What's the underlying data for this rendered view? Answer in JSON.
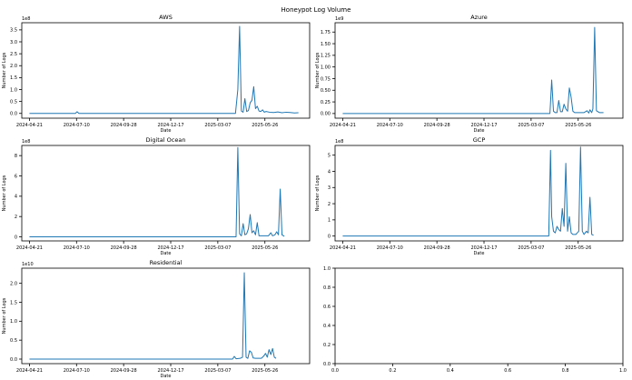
{
  "figure": {
    "title": "Honeypot Log Volume"
  },
  "chart_data": [
    {
      "type": "line",
      "title": "AWS",
      "xlabel": "Date",
      "ylabel": "Number of Logs",
      "y_offset_text": "1e8",
      "xlim": [
        "2024-04-08",
        "2025-08-10"
      ],
      "ylim": [
        -0.2,
        3.8
      ],
      "x_ticks": [
        "2024-04-21",
        "2024-07-10",
        "2024-09-28",
        "2024-12-17",
        "2025-03-07",
        "2025-05-26"
      ],
      "y_ticks": [
        0.0,
        0.5,
        1.0,
        1.5,
        2.0,
        2.5,
        3.0,
        3.5
      ],
      "grid": false,
      "series": [
        {
          "color": "#1f77b4",
          "points": [
            [
              "2024-04-21",
              0.0
            ],
            [
              "2024-07-08",
              0.0
            ],
            [
              "2024-07-11",
              0.07
            ],
            [
              "2024-07-14",
              0.0
            ],
            [
              "2025-04-06",
              0.0
            ],
            [
              "2025-04-10",
              1.0
            ],
            [
              "2025-04-13",
              3.65
            ],
            [
              "2025-04-16",
              0.1
            ],
            [
              "2025-04-19",
              0.05
            ],
            [
              "2025-04-22",
              0.62
            ],
            [
              "2025-04-25",
              0.08
            ],
            [
              "2025-04-28",
              0.12
            ],
            [
              "2025-05-01",
              0.45
            ],
            [
              "2025-05-04",
              0.55
            ],
            [
              "2025-05-07",
              1.12
            ],
            [
              "2025-05-10",
              0.2
            ],
            [
              "2025-05-13",
              0.3
            ],
            [
              "2025-05-16",
              0.1
            ],
            [
              "2025-05-19",
              0.08
            ],
            [
              "2025-05-22",
              0.15
            ],
            [
              "2025-05-25",
              0.05
            ],
            [
              "2025-05-28",
              0.08
            ],
            [
              "2025-06-03",
              0.05
            ],
            [
              "2025-06-10",
              0.04
            ],
            [
              "2025-06-17",
              0.06
            ],
            [
              "2025-06-24",
              0.03
            ],
            [
              "2025-07-01",
              0.05
            ],
            [
              "2025-07-08",
              0.04
            ],
            [
              "2025-07-15",
              0.02
            ],
            [
              "2025-07-22",
              0.03
            ]
          ]
        }
      ]
    },
    {
      "type": "line",
      "title": "Azure",
      "xlabel": "Date",
      "ylabel": "Number of Logs",
      "y_offset_text": "1e9",
      "xlim": [
        "2024-04-08",
        "2025-08-10"
      ],
      "ylim": [
        -0.1,
        1.95
      ],
      "x_ticks": [
        "2024-04-21",
        "2024-07-10",
        "2024-09-28",
        "2024-12-17",
        "2025-03-07",
        "2025-05-26"
      ],
      "y_ticks": [
        0.0,
        0.25,
        0.5,
        0.75,
        1.0,
        1.25,
        1.5,
        1.75
      ],
      "grid": false,
      "series": [
        {
          "color": "#1f77b4",
          "points": [
            [
              "2024-04-21",
              0.0
            ],
            [
              "2025-04-08",
              0.0
            ],
            [
              "2025-04-11",
              0.72
            ],
            [
              "2025-04-14",
              0.05
            ],
            [
              "2025-04-17",
              0.02
            ],
            [
              "2025-04-20",
              0.02
            ],
            [
              "2025-04-23",
              0.28
            ],
            [
              "2025-04-26",
              0.04
            ],
            [
              "2025-04-29",
              0.04
            ],
            [
              "2025-05-02",
              0.2
            ],
            [
              "2025-05-05",
              0.1
            ],
            [
              "2025-05-08",
              0.05
            ],
            [
              "2025-05-11",
              0.55
            ],
            [
              "2025-05-14",
              0.35
            ],
            [
              "2025-05-17",
              0.05
            ],
            [
              "2025-05-20",
              0.02
            ],
            [
              "2025-06-05",
              0.02
            ],
            [
              "2025-06-10",
              0.06
            ],
            [
              "2025-06-13",
              0.01
            ],
            [
              "2025-06-15",
              0.08
            ],
            [
              "2025-06-18",
              0.02
            ],
            [
              "2025-06-20",
              0.1
            ],
            [
              "2025-06-23",
              1.85
            ],
            [
              "2025-06-26",
              0.06
            ],
            [
              "2025-07-01",
              0.02
            ],
            [
              "2025-07-08",
              0.02
            ]
          ]
        }
      ]
    },
    {
      "type": "line",
      "title": "Digital Ocean",
      "xlabel": "Date",
      "ylabel": "Number of Logs",
      "y_offset_text": "1e8",
      "xlim": [
        "2024-04-08",
        "2025-08-10"
      ],
      "ylim": [
        -0.4,
        9.0
      ],
      "x_ticks": [
        "2024-04-21",
        "2024-07-10",
        "2024-09-28",
        "2024-12-17",
        "2025-03-07",
        "2025-05-26"
      ],
      "y_ticks": [
        0,
        2,
        4,
        6,
        8
      ],
      "grid": false,
      "series": [
        {
          "color": "#1f77b4",
          "points": [
            [
              "2024-04-21",
              0.0
            ],
            [
              "2025-04-07",
              0.0
            ],
            [
              "2025-04-10",
              8.8
            ],
            [
              "2025-04-13",
              0.3
            ],
            [
              "2025-04-16",
              0.1
            ],
            [
              "2025-04-19",
              1.3
            ],
            [
              "2025-04-22",
              0.2
            ],
            [
              "2025-04-25",
              0.3
            ],
            [
              "2025-04-28",
              0.8
            ],
            [
              "2025-05-01",
              2.2
            ],
            [
              "2025-05-04",
              0.4
            ],
            [
              "2025-05-07",
              0.6
            ],
            [
              "2025-05-10",
              0.2
            ],
            [
              "2025-05-13",
              1.4
            ],
            [
              "2025-05-16",
              0.1
            ],
            [
              "2025-05-19",
              0.1
            ],
            [
              "2025-06-01",
              0.1
            ],
            [
              "2025-06-05",
              0.4
            ],
            [
              "2025-06-08",
              0.1
            ],
            [
              "2025-06-12",
              0.2
            ],
            [
              "2025-06-15",
              0.5
            ],
            [
              "2025-06-18",
              0.2
            ],
            [
              "2025-06-21",
              4.7
            ],
            [
              "2025-06-24",
              0.2
            ],
            [
              "2025-06-28",
              0.05
            ]
          ]
        }
      ]
    },
    {
      "type": "line",
      "title": "GCP",
      "xlabel": "Date",
      "ylabel": "Number of Logs",
      "y_offset_text": "1e8",
      "xlim": [
        "2024-04-08",
        "2025-08-10"
      ],
      "ylim": [
        -0.3,
        5.6
      ],
      "x_ticks": [
        "2024-04-21",
        "2024-07-10",
        "2024-09-28",
        "2024-12-17",
        "2025-03-07",
        "2025-05-26"
      ],
      "y_ticks": [
        0,
        1,
        2,
        3,
        4,
        5
      ],
      "grid": false,
      "series": [
        {
          "color": "#1f77b4",
          "points": [
            [
              "2024-04-21",
              0.0
            ],
            [
              "2025-04-06",
              0.0
            ],
            [
              "2025-04-09",
              5.3
            ],
            [
              "2025-04-11",
              1.2
            ],
            [
              "2025-04-14",
              0.3
            ],
            [
              "2025-04-17",
              0.2
            ],
            [
              "2025-04-20",
              0.6
            ],
            [
              "2025-04-23",
              0.4
            ],
            [
              "2025-04-26",
              0.3
            ],
            [
              "2025-04-29",
              1.7
            ],
            [
              "2025-05-02",
              0.6
            ],
            [
              "2025-05-05",
              4.5
            ],
            [
              "2025-05-08",
              0.3
            ],
            [
              "2025-05-11",
              1.2
            ],
            [
              "2025-05-14",
              0.2
            ],
            [
              "2025-05-17",
              0.1
            ],
            [
              "2025-05-22",
              0.1
            ],
            [
              "2025-05-27",
              0.3
            ],
            [
              "2025-05-30",
              5.5
            ],
            [
              "2025-06-02",
              0.3
            ],
            [
              "2025-06-05",
              0.1
            ],
            [
              "2025-06-09",
              0.3
            ],
            [
              "2025-06-12",
              0.2
            ],
            [
              "2025-06-15",
              2.4
            ],
            [
              "2025-06-18",
              0.1
            ],
            [
              "2025-06-21",
              0.05
            ]
          ]
        }
      ]
    },
    {
      "type": "line",
      "title": "Residential",
      "xlabel": "Date",
      "ylabel": "Number of Logs",
      "y_offset_text": "1e10",
      "xlim": [
        "2024-04-08",
        "2025-08-10"
      ],
      "ylim": [
        -0.12,
        2.4
      ],
      "x_ticks": [
        "2024-04-21",
        "2024-07-10",
        "2024-09-28",
        "2024-12-17",
        "2025-03-07",
        "2025-05-26"
      ],
      "y_ticks": [
        0.0,
        0.5,
        1.0,
        1.5,
        2.0
      ],
      "grid": false,
      "series": [
        {
          "color": "#1f77b4",
          "points": [
            [
              "2024-04-21",
              0.0
            ],
            [
              "2025-04-01",
              0.0
            ],
            [
              "2025-04-04",
              0.07
            ],
            [
              "2025-04-07",
              0.01
            ],
            [
              "2025-04-14",
              0.02
            ],
            [
              "2025-04-18",
              0.05
            ],
            [
              "2025-04-21",
              2.28
            ],
            [
              "2025-04-24",
              0.05
            ],
            [
              "2025-04-27",
              0.02
            ],
            [
              "2025-04-30",
              0.22
            ],
            [
              "2025-05-03",
              0.18
            ],
            [
              "2025-05-06",
              0.03
            ],
            [
              "2025-05-10",
              0.02
            ],
            [
              "2025-05-20",
              0.02
            ],
            [
              "2025-05-24",
              0.08
            ],
            [
              "2025-05-27",
              0.15
            ],
            [
              "2025-05-30",
              0.05
            ],
            [
              "2025-06-02",
              0.25
            ],
            [
              "2025-06-05",
              0.12
            ],
            [
              "2025-06-08",
              0.28
            ],
            [
              "2025-06-11",
              0.05
            ],
            [
              "2025-06-14",
              0.02
            ]
          ]
        }
      ]
    },
    {
      "type": "line",
      "title": "",
      "xlim": [
        0,
        1
      ],
      "ylim": [
        0,
        1
      ],
      "x_ticks": [
        0.0,
        0.2,
        0.4,
        0.6,
        0.8,
        1.0
      ],
      "y_ticks": [
        0.0,
        0.2,
        0.4,
        0.6,
        0.8,
        1.0
      ],
      "x_tick_labels": [
        "0.0",
        "0.2",
        "0.4",
        "0.6",
        "0.8",
        "1.0"
      ],
      "y_tick_labels": [
        "0.0",
        "0.2",
        "0.4",
        "0.6",
        "0.8",
        "1.0"
      ],
      "grid": false,
      "series": []
    }
  ]
}
